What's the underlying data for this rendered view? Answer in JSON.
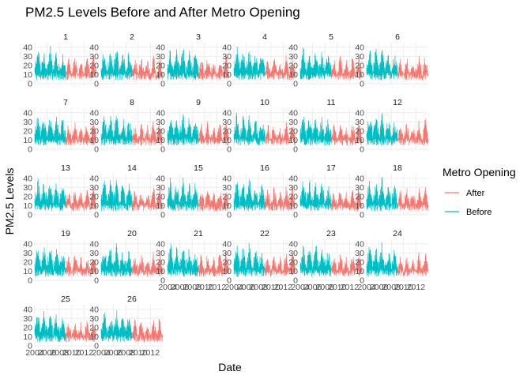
{
  "chart_data": {
    "type": "line",
    "title": "PM2.5 Levels Before and After Metro Opening",
    "xlabel": "Date",
    "ylabel": "PM2.5 Levels",
    "x_range": [
      2004,
      2014
    ],
    "x_ticks": [
      2004,
      2006,
      2008,
      2010,
      2012
    ],
    "x_tick_labels": [
      "2004",
      "2006",
      "2008",
      "2010",
      "2012"
    ],
    "ylim": [
      0,
      45
    ],
    "y_ticks": [
      0,
      10,
      20,
      30,
      40
    ],
    "y_tick_labels": [
      "0",
      "10",
      "20",
      "30",
      "40"
    ],
    "grid": true,
    "legend": {
      "title": "Metro Opening",
      "position": "right",
      "entries": [
        {
          "name": "After",
          "color": "#F8766D"
        },
        {
          "name": "Before",
          "color": "#00BFC4"
        }
      ]
    },
    "facets": [
      "1",
      "2",
      "3",
      "4",
      "5",
      "6",
      "7",
      "8",
      "9",
      "10",
      "11",
      "12",
      "13",
      "14",
      "15",
      "16",
      "17",
      "18",
      "19",
      "20",
      "21",
      "22",
      "23",
      "24",
      "25",
      "26"
    ],
    "facet_columns": 6,
    "metro_opening_year": 2009,
    "series": [
      {
        "name": "Before",
        "color": "#00BFC4",
        "x": [
          2004.0,
          2004.5,
          2005.0,
          2005.5,
          2006.0,
          2006.5,
          2007.0,
          2007.5,
          2008.0,
          2008.5,
          2009.0
        ],
        "values": [
          20,
          43,
          18,
          40,
          19,
          44,
          17,
          38,
          18,
          36,
          20
        ]
      },
      {
        "name": "After",
        "color": "#F8766D",
        "x": [
          2009.0,
          2009.5,
          2010.0,
          2010.5,
          2011.0,
          2011.5,
          2012.0,
          2012.5,
          2013.0,
          2013.5,
          2014.0
        ],
        "values": [
          14,
          30,
          13,
          32,
          14,
          28,
          13,
          33,
          12,
          35,
          12
        ]
      }
    ]
  }
}
